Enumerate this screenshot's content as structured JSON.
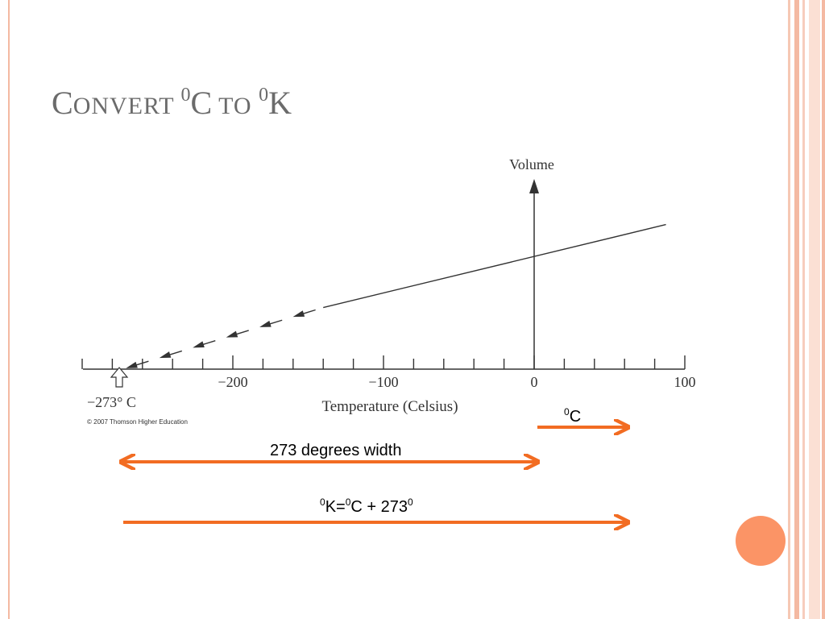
{
  "slide": {
    "title_prefix": "C",
    "title_word1": "ONVERT ",
    "title_sup1": "0",
    "title_c": "C",
    "title_to": " TO ",
    "title_sup2": "0",
    "title_k": "K",
    "accent_color": "#f26c22",
    "circle_color": "#fb9466",
    "frame_color": "#f4b9a2"
  },
  "chart_data": {
    "type": "line",
    "xlabel": "Temperature (Celsius)",
    "ylabel": "Volume",
    "xlim": [
      -273,
      100
    ],
    "x_ticks": [
      -200,
      -100,
      0,
      100
    ],
    "x_tick_labels": [
      "−200",
      "−100",
      "0",
      "100"
    ],
    "minor_tick_step": 20,
    "zero_annotation": "−273° C",
    "copyright": "© 2007 Thomson Higher Education",
    "series": [
      {
        "style": "solid",
        "x": [
          -140,
          42
        ],
        "relative_volume": [
          0.49,
          1.15
        ]
      },
      {
        "style": "dashed-extrapolation",
        "x": [
          -273,
          -140
        ],
        "relative_volume": [
          0,
          0.49
        ]
      }
    ],
    "grid": false
  },
  "annotations": {
    "celsius_sup": "0",
    "celsius_label": "C",
    "width_label": "273 degrees width",
    "formula_sup1": "0",
    "formula_k": "K=",
    "formula_sup2": "0",
    "formula_c": "C + 273",
    "formula_sup3": "0"
  }
}
